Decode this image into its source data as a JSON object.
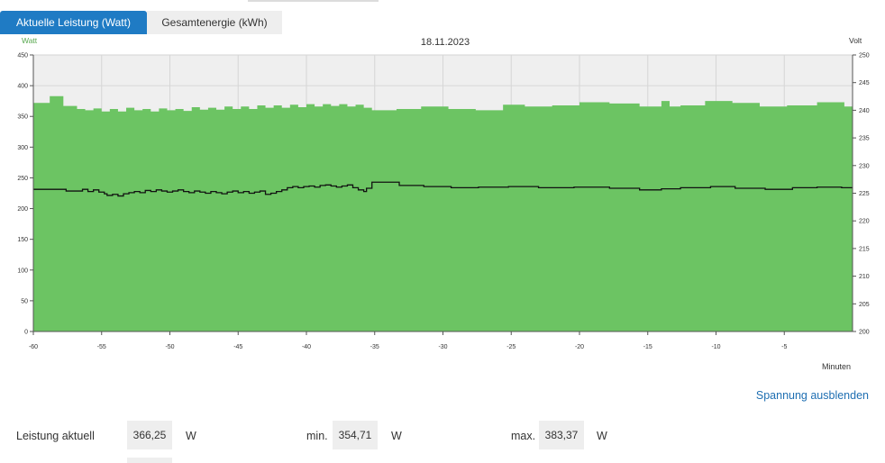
{
  "tabs": [
    {
      "label": "Aktuelle Leistung (Watt)",
      "active": true
    },
    {
      "label": "Gesamtenergie (kWh)",
      "active": false
    }
  ],
  "toggle_voltage_label": "Spannung ausblenden",
  "stats": {
    "current_label": "Leistung aktuell",
    "current_value": "366,25",
    "current_unit": "W",
    "min_label": "min.",
    "min_value": "354,71",
    "min_unit": "W",
    "max_label": "max.",
    "max_value": "383,37",
    "max_unit": "W"
  },
  "colors": {
    "accent": "#1f7bc4",
    "power_fill": "#6cc463",
    "voltage_line": "#111111",
    "plot_bg": "#efefef"
  },
  "chart_data": {
    "type": "area",
    "title": "18.11.2023",
    "ylabel_left": "Watt",
    "ylabel_right": "Volt",
    "xlabel": "Minuten",
    "xlim": [
      -60,
      0
    ],
    "ylim_left": [
      0,
      450
    ],
    "ylim_right": [
      200,
      250
    ],
    "x_ticks": [
      -60,
      -55,
      -50,
      -45,
      -40,
      -35,
      -30,
      -25,
      -20,
      -15,
      -10,
      -5
    ],
    "y_ticks_left": [
      0,
      50,
      100,
      150,
      200,
      250,
      300,
      350,
      400,
      450
    ],
    "y_ticks_right": [
      200,
      205,
      210,
      215,
      220,
      225,
      230,
      235,
      240,
      245,
      250
    ],
    "grid": true,
    "series": [
      {
        "name": "Watt",
        "axis": "left",
        "x": [
          -60,
          -58.8,
          -57.8,
          -56.8,
          -56.2,
          -55.6,
          -55.0,
          -54.4,
          -53.8,
          -53.2,
          -52.6,
          -52.0,
          -51.4,
          -50.8,
          -50.2,
          -49.6,
          -49.0,
          -48.4,
          -47.8,
          -47.2,
          -46.6,
          -46.0,
          -45.4,
          -44.8,
          -44.2,
          -43.6,
          -43.0,
          -42.4,
          -41.8,
          -41.2,
          -40.6,
          -40.0,
          -39.4,
          -38.8,
          -38.2,
          -37.6,
          -37.0,
          -36.4,
          -35.8,
          -35.2,
          -33.4,
          -31.6,
          -29.6,
          -27.6,
          -25.6,
          -24.0,
          -22.0,
          -20.0,
          -17.8,
          -15.6,
          -14.0,
          -13.4,
          -12.6,
          -10.8,
          -8.8,
          -6.8,
          -4.8,
          -2.6,
          -0.6,
          0
        ],
        "values": [
          372,
          383,
          367,
          362,
          360,
          363,
          358,
          362,
          358,
          364,
          360,
          362,
          358,
          363,
          360,
          362,
          359,
          365,
          361,
          364,
          361,
          366,
          362,
          366,
          362,
          368,
          364,
          368,
          364,
          369,
          365,
          370,
          366,
          370,
          367,
          370,
          366,
          369,
          364,
          360,
          362,
          366,
          362,
          360,
          369,
          366,
          368,
          373,
          371,
          366,
          375,
          366,
          368,
          375,
          372,
          366,
          368,
          373,
          366,
          366
        ]
      },
      {
        "name": "Volt",
        "axis": "right",
        "x": [
          -60,
          -57.6,
          -56.4,
          -56.0,
          -55.6,
          -55.2,
          -54.8,
          -54.6,
          -54.2,
          -53.8,
          -53.4,
          -53.0,
          -52.6,
          -52.2,
          -51.8,
          -51.4,
          -51.0,
          -50.6,
          -50.2,
          -49.8,
          -49.4,
          -49.0,
          -48.6,
          -48.2,
          -47.8,
          -47.4,
          -47.0,
          -46.6,
          -46.2,
          -45.8,
          -45.4,
          -45.0,
          -44.6,
          -44.2,
          -43.8,
          -43.4,
          -43.0,
          -42.6,
          -42.2,
          -41.8,
          -41.4,
          -41.0,
          -40.6,
          -40.2,
          -39.8,
          -39.4,
          -39.0,
          -38.6,
          -38.2,
          -37.8,
          -37.4,
          -37.0,
          -36.6,
          -36.2,
          -35.8,
          -35.6,
          -35.2,
          -33.2,
          -31.4,
          -29.4,
          -27.4,
          -25.2,
          -23.0,
          -20.4,
          -17.8,
          -15.6,
          -14.0,
          -12.6,
          -10.4,
          -8.6,
          -6.4,
          -4.4,
          -2.6,
          -0.8,
          0
        ],
        "values": [
          225.7,
          225.4,
          225.7,
          225.3,
          225.6,
          225.2,
          224.9,
          224.6,
          224.8,
          224.5,
          224.9,
          225.1,
          225.3,
          225.1,
          225.5,
          225.3,
          225.6,
          225.4,
          225.2,
          225.4,
          225.6,
          225.3,
          225.1,
          225.4,
          225.2,
          225.0,
          225.3,
          225.1,
          224.9,
          225.2,
          225.4,
          225.1,
          225.3,
          225.0,
          225.2,
          225.4,
          224.8,
          225.0,
          225.3,
          225.6,
          226.0,
          226.2,
          226.0,
          226.2,
          226.3,
          226.1,
          226.4,
          226.5,
          226.3,
          226.1,
          226.3,
          226.5,
          226.0,
          225.6,
          225.3,
          225.9,
          227.0,
          226.4,
          226.2,
          226.0,
          226.1,
          226.2,
          226.0,
          226.1,
          225.9,
          225.6,
          225.8,
          226.0,
          226.2,
          225.9,
          225.7,
          226.0,
          226.1,
          226.0,
          226.0
        ]
      }
    ]
  }
}
